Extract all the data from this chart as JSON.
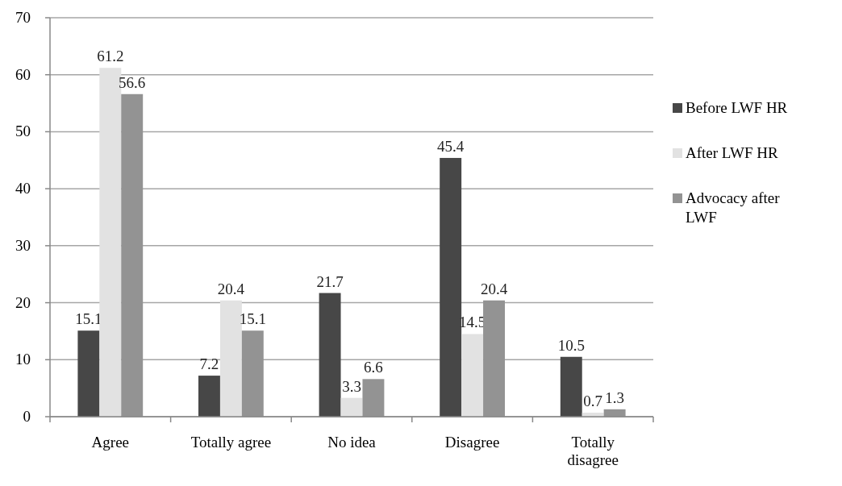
{
  "chart_data": {
    "type": "bar",
    "categories": [
      "Agree",
      "Totally agree",
      "No idea",
      "Disagree",
      "Totally disagree"
    ],
    "series": [
      {
        "name": "Before LWF HR",
        "color": "#474747",
        "values": [
          15.1,
          7.2,
          21.7,
          45.4,
          10.5
        ]
      },
      {
        "name": "After LWF HR",
        "color": "#e2e2e2",
        "values": [
          61.2,
          20.4,
          3.3,
          14.5,
          0.7
        ]
      },
      {
        "name": "Advocacy after LWF",
        "color": "#939393",
        "values": [
          56.6,
          15.1,
          6.6,
          20.4,
          1.3
        ]
      }
    ],
    "ylim": [
      0,
      70
    ],
    "yticks": [
      0,
      10,
      20,
      30,
      40,
      50,
      60,
      70
    ],
    "grid": "y",
    "legend": "right",
    "data_labels": true
  }
}
